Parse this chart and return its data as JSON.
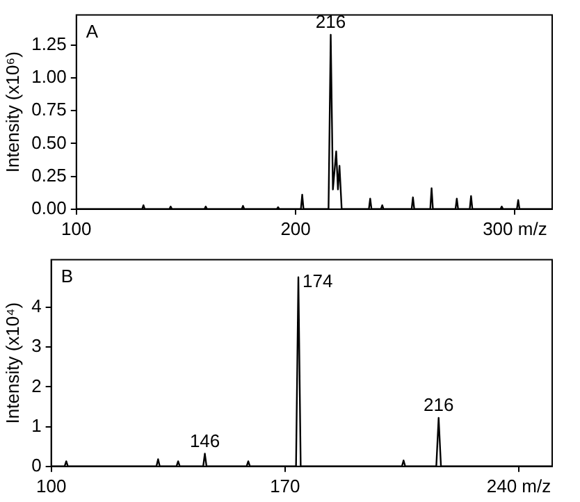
{
  "chart_data": [
    {
      "type": "line",
      "ylabel": "Intensity (x10⁶)",
      "xlim": [
        100,
        317
      ],
      "xticks": [
        100,
        200,
        {
          "value": 300,
          "label": "300 m/z"
        }
      ],
      "ylim": [
        0,
        1.48
      ],
      "yticks": [
        {
          "value": 0,
          "label": "0.00"
        },
        {
          "value": 0.25,
          "label": "0.25"
        },
        {
          "value": 0.5,
          "label": "0.50"
        },
        {
          "value": 0.75,
          "label": "0.75"
        },
        {
          "value": 1,
          "label": "1.00"
        },
        {
          "value": 1.25,
          "label": "1.25"
        }
      ],
      "grid": false,
      "legend": false,
      "marker": "none",
      "line_style": "solid",
      "annotations": [
        "A",
        {
          "text": "216",
          "x": 216,
          "y": 1.33
        }
      ],
      "series": [
        {
          "color": "#000000",
          "x": [
            100,
            130,
            130.6,
            131.2,
            142.4,
            143,
            143.6,
            158.4,
            159,
            159.6,
            175.4,
            176,
            176.6,
            191.4,
            192,
            192.6,
            202.4,
            203,
            203.6,
            215,
            216,
            217,
            218.5,
            219.3,
            220,
            221,
            233.4,
            234,
            234.6,
            238.9,
            239.5,
            240.1,
            252.9,
            253.5,
            254.1,
            261.4,
            262,
            262.6,
            272.9,
            273.5,
            274.1,
            279.4,
            280,
            280.6,
            293.4,
            294,
            294.6,
            300.9,
            301.5,
            302.1,
            317
          ],
          "values": [
            0,
            0,
            0.03,
            0,
            0,
            0.02,
            0,
            0,
            0.02,
            0,
            0,
            0.025,
            0,
            0,
            0.015,
            0,
            0,
            0.11,
            0,
            0,
            1.33,
            0.15,
            0.44,
            0.15,
            0.33,
            0,
            0,
            0.08,
            0,
            0,
            0.03,
            0,
            0,
            0.09,
            0,
            0,
            0.16,
            0,
            0,
            0.08,
            0,
            0,
            0.1,
            0,
            0,
            0.02,
            0,
            0,
            0.07,
            0,
            0
          ]
        }
      ]
    },
    {
      "type": "line",
      "ylabel": "Intensity (x10⁴)",
      "xlim": [
        100,
        250
      ],
      "xticks": [
        100,
        170,
        {
          "value": 240,
          "label": "240 m/z"
        }
      ],
      "ylim": [
        0,
        5.2
      ],
      "yticks": [
        0,
        1,
        2,
        3,
        4
      ],
      "grid": false,
      "legend": false,
      "marker": "none",
      "line_style": "solid",
      "annotations": [
        "B",
        {
          "text": "146",
          "x": 146,
          "y": 0.32
        },
        {
          "text": "174",
          "x": 174,
          "y": 4.76
        },
        {
          "text": "216",
          "x": 216,
          "y": 1.22
        }
      ],
      "series": [
        {
          "color": "#000000",
          "x": [
            100,
            104,
            104.5,
            105,
            131.5,
            132,
            132.5,
            137.5,
            138,
            138.5,
            145.5,
            146,
            146.5,
            158.5,
            159,
            159.5,
            173.3,
            174,
            174.7,
            205,
            205.5,
            206,
            215.3,
            216,
            216.7,
            250
          ],
          "values": [
            0,
            0,
            0.13,
            0,
            0,
            0.18,
            0,
            0,
            0.13,
            0,
            0,
            0.32,
            0,
            0,
            0.13,
            0,
            0,
            4.76,
            0,
            0,
            0.15,
            0,
            0,
            1.22,
            0,
            0
          ]
        }
      ]
    }
  ]
}
